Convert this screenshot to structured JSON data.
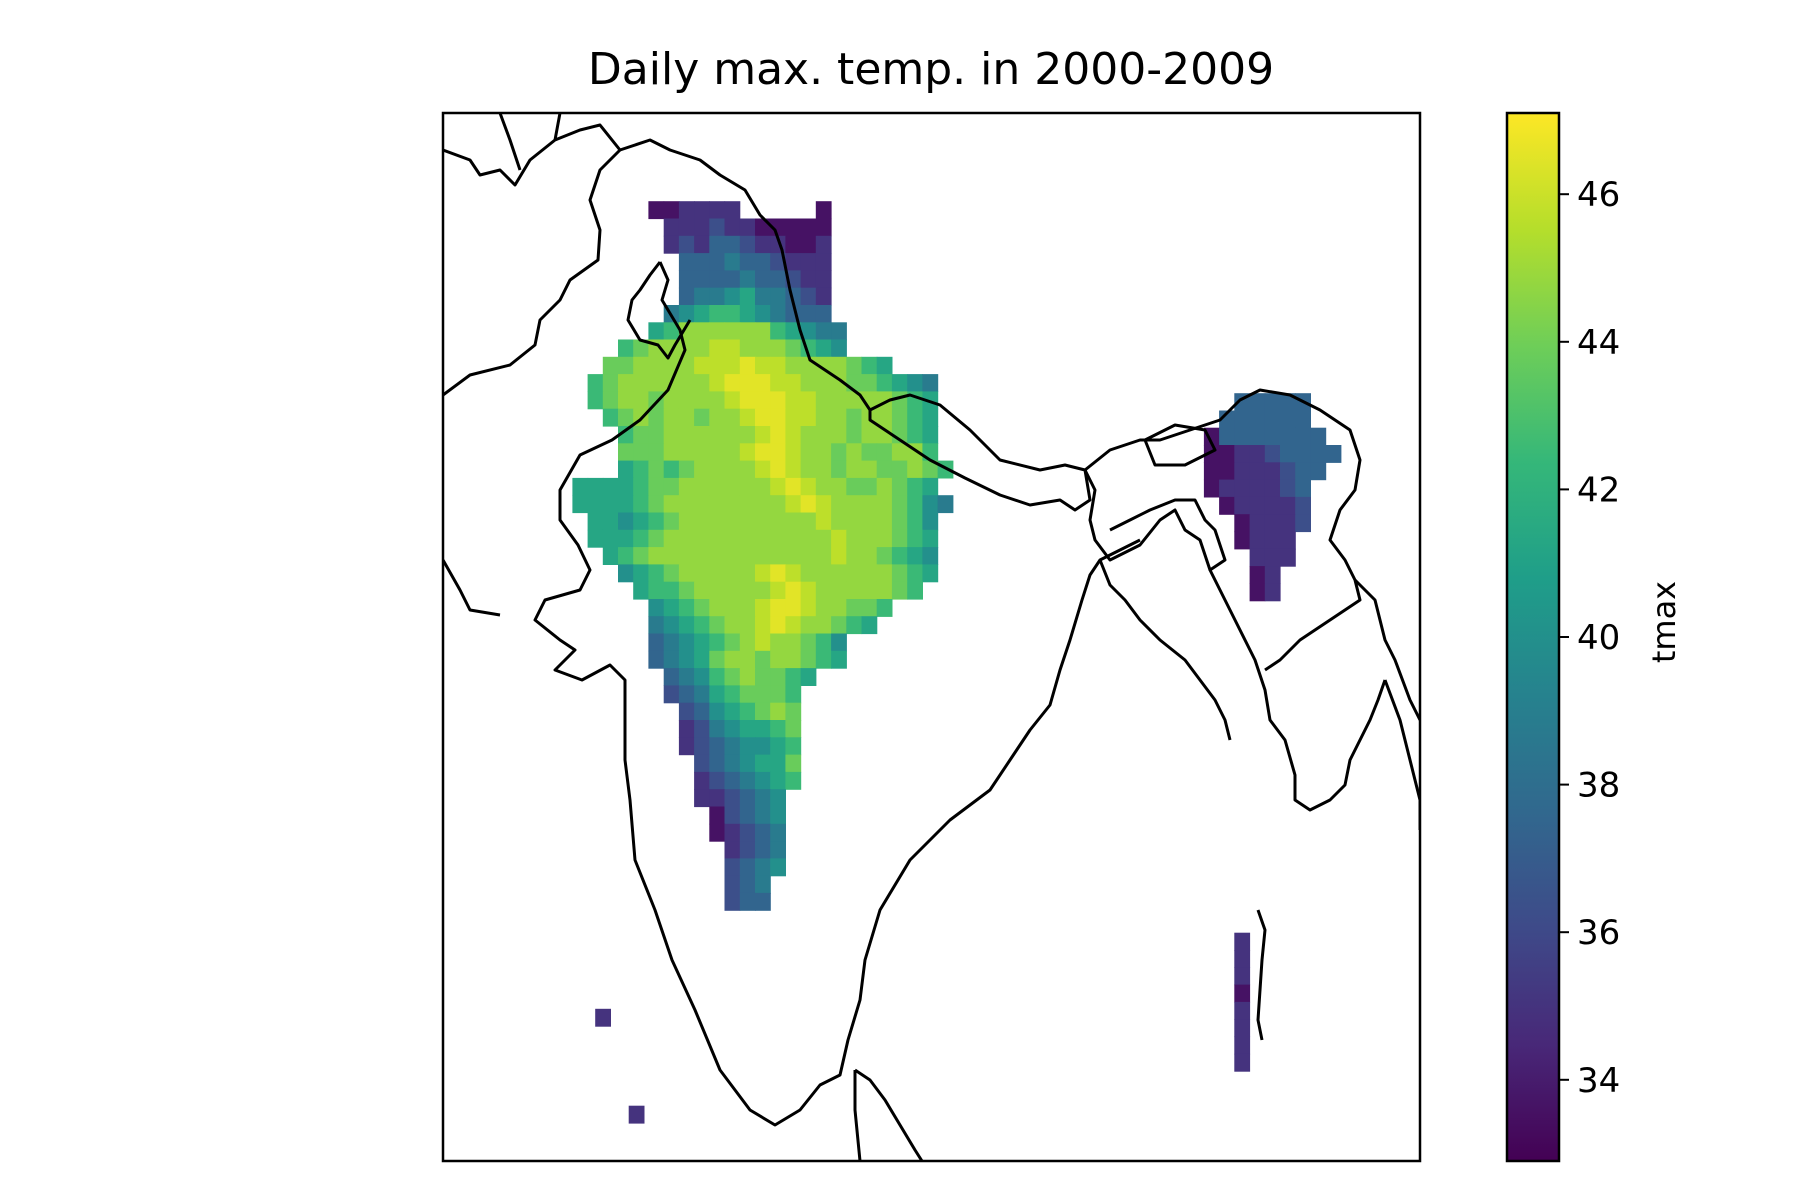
{
  "chart_data": {
    "type": "heatmap",
    "title": "Daily max. temp. in 2000-2009",
    "colorbar": {
      "label": "tmax",
      "range": [
        32.9,
        47.1
      ],
      "ticks": [
        "34",
        "36",
        "38",
        "40",
        "42",
        "44",
        "46"
      ],
      "colormap": "viridis",
      "colormap_stops": [
        "#440154",
        "#482878",
        "#3e4a89",
        "#31688e",
        "#26828e",
        "#1f9e89",
        "#35b779",
        "#6ece58",
        "#b5de2b",
        "#fde725"
      ]
    },
    "grid": {
      "lon_start": 68.25,
      "lat_start": 35.75,
      "step": 0.5,
      "rows": [
        "...........................",
        "...........................",
        "..........AABBBB.....A.....",
        "...........BBBCBBAAAAA.....",
        "...........BCBDDCBBAAB.....",
        "............DDDEDDCBBB.....",
        "............DDDDEDDCBB.....",
        "............DEEFGEEDCB.....",
        "...........EFGHHGFEDDD.....",
        "..........GHJJJJJJHGFEE....",
        "........HIJJJJKKJJJIHGF....",
        ".......IIJJJJKKKLKKJJJJIHG.",
        "......HIJJJJJJKLLLKKJJJIIHGFE",
        "......HIJJIJJJJKLLLKKJJJJJIHG",
        ".......HIJIJJIJJKLLKKJJIJJIHG",
        "........HIIJJJJJJKLKJJJIJJIHG",
        "........IIIJJJJJKLLKJJIJIIJJH",
        "........GHIHIJJJJKLKJJIJJIIJIH",
        ".....GGGGHIIJJJJJJKLKJJIIJIHG",
        ".....GGGGHIJJJJJJJJKLKJJJJIHFE",
        "......GGFGHIJJJJJJJJJKJJJJIHF",
        "......GGGHIJJJJJJJJJJJKJJJIHG",
        ".......GHIJJJJJJJJJJJJKJJIHGF",
        "........FGHIJJJJJKLKJJJJJJIHG",
        ".........GHHIJJJJJKLKJJJJJIH",
        "..........FGHIJJJKLLKJJIIH",
        "..........EFGHIJJKLKJJIHG",
        "..........DEFGHIJKJJIHF",
        "..........DEFGIJJIJJIHG",
        "...........DEFHIJIIHG",
        "...........CDEGHIIIH",
        "............CDFGHIJI",
        "............BCEFGGHI",
        "............BCDEFFGH",
        ".............CDEFGGI",
        ".............BCDEFGH",
        ".............BBCDEF",
        "..............ACDEF",
        "..............ABCDE",
        "...............BCDE",
        "...............CDEF",
        "...............CDE",
        "...............CDD"
      ],
      "level_values": {
        "A": 33.6,
        "B": 35.0,
        "C": 36.3,
        "D": 37.5,
        "E": 38.8,
        "F": 40.0,
        "G": 41.3,
        "H": 42.5,
        "I": 43.8,
        "J": 44.8,
        "K": 45.7,
        "L": 46.5
      }
    },
    "patches": [
      {
        "lon_start": 91.5,
        "lat_start": 29.2,
        "rows": [
          "..DDDDD",
          ".DDDDDD",
          "ADDDDDDD",
          "AABBCDDDD",
          "AABBBCDD",
          "ABBBBCD",
          ".ABBBBC",
          "..ABBBC",
          "..ABBB",
          "...BBB",
          "...AB",
          "...AB"
        ]
      },
      {
        "lon_start": 71.5,
        "lat_start": 11.4,
        "rows": [
          "B"
        ]
      },
      {
        "lon_start": 72.6,
        "lat_start": 8.6,
        "rows": [
          "B"
        ]
      },
      {
        "lon_start": 92.5,
        "lat_start": 13.6,
        "rows": [
          "B",
          "B",
          "B",
          "A",
          "B",
          "B",
          "B",
          "B"
        ]
      }
    ]
  }
}
